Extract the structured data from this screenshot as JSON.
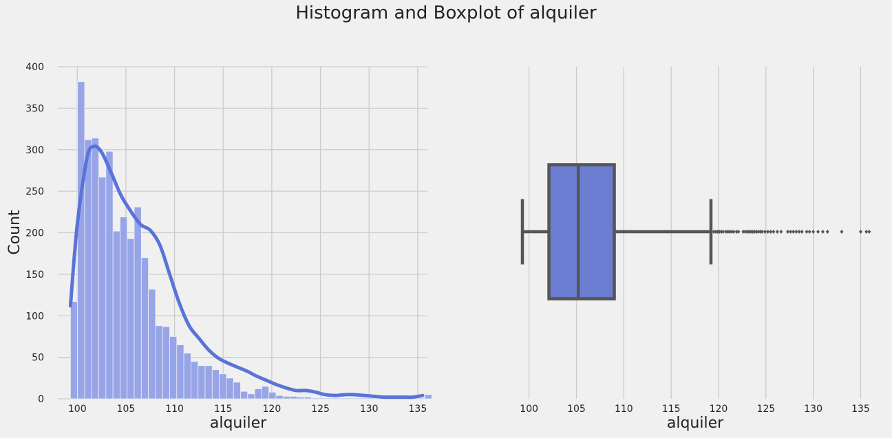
{
  "suptitle": "Histogram and Boxplot of alquiler",
  "colors": {
    "background": "#f0f0f0",
    "grid": "#cbcbcb",
    "hist_fill": "#97a5e8",
    "kde_line": "#5a73d9",
    "box_fill": "#6a7dd1",
    "box_line": "#555555"
  },
  "chart_data": [
    {
      "type": "histogram",
      "xlabel": "alquiler",
      "ylabel": "Count",
      "xlim": [
        98,
        136
      ],
      "ylim": [
        0,
        400
      ],
      "xticks": [
        100,
        105,
        110,
        115,
        120,
        125,
        130,
        135
      ],
      "yticks": [
        0,
        50,
        100,
        150,
        200,
        250,
        300,
        350,
        400
      ],
      "grid": true,
      "bin_start": 99.3,
      "bin_width": 0.7286,
      "counts": [
        117,
        382,
        312,
        314,
        267,
        298,
        202,
        219,
        193,
        231,
        170,
        132,
        88,
        87,
        75,
        65,
        55,
        45,
        40,
        40,
        35,
        30,
        25,
        20,
        9,
        6,
        12,
        15,
        8,
        4,
        3,
        3,
        2,
        2,
        1,
        1,
        1,
        1,
        1,
        1,
        1,
        1,
        1,
        1,
        1,
        1,
        1,
        1,
        1,
        1,
        5
      ],
      "kde": {
        "x": [
          99.3,
          100,
          101,
          101.7,
          102.5,
          103.5,
          104.5,
          105.5,
          106.5,
          107.5,
          108.5,
          109.5,
          110.5,
          111.5,
          112.5,
          113.5,
          114.5,
          115.5,
          116.5,
          117.5,
          118.5,
          119.5,
          120.5,
          121.5,
          122.5,
          123.5,
          124.5,
          125.5,
          126.5,
          127.5,
          128.5,
          129.5,
          130.5,
          131.5,
          132.5,
          133.5,
          134.5,
          135.5
        ],
        "y": [
          112,
          210,
          290,
          304,
          297,
          272,
          245,
          226,
          210,
          203,
          185,
          150,
          115,
          88,
          73,
          59,
          49,
          43,
          38,
          33,
          27,
          22,
          17,
          13,
          10,
          10,
          8,
          5,
          4,
          5,
          5,
          4,
          3,
          2,
          2,
          2,
          2,
          4
        ]
      }
    },
    {
      "type": "boxplot",
      "xlabel": "alquiler",
      "xlim": [
        98.5,
        136.2
      ],
      "xticks": [
        100,
        105,
        110,
        115,
        120,
        125,
        130,
        135
      ],
      "grid": true,
      "whisker_low": 99.3,
      "q1": 102.1,
      "median": 105.2,
      "q3": 109.0,
      "whisker_high": 119.2,
      "outliers": [
        119.5,
        119.7,
        119.9,
        120.1,
        120.3,
        120.5,
        120.8,
        121.0,
        121.2,
        121.4,
        121.6,
        121.9,
        122.1,
        122.6,
        122.8,
        123.0,
        123.2,
        123.4,
        123.6,
        123.8,
        124.0,
        124.2,
        124.4,
        124.6,
        124.9,
        125.2,
        125.5,
        125.8,
        126.2,
        126.6,
        127.3,
        127.6,
        127.9,
        128.2,
        128.5,
        128.8,
        129.3,
        129.6,
        130.0,
        130.5,
        131.0,
        131.5,
        133.0,
        135.0,
        135.6,
        135.9
      ]
    }
  ]
}
